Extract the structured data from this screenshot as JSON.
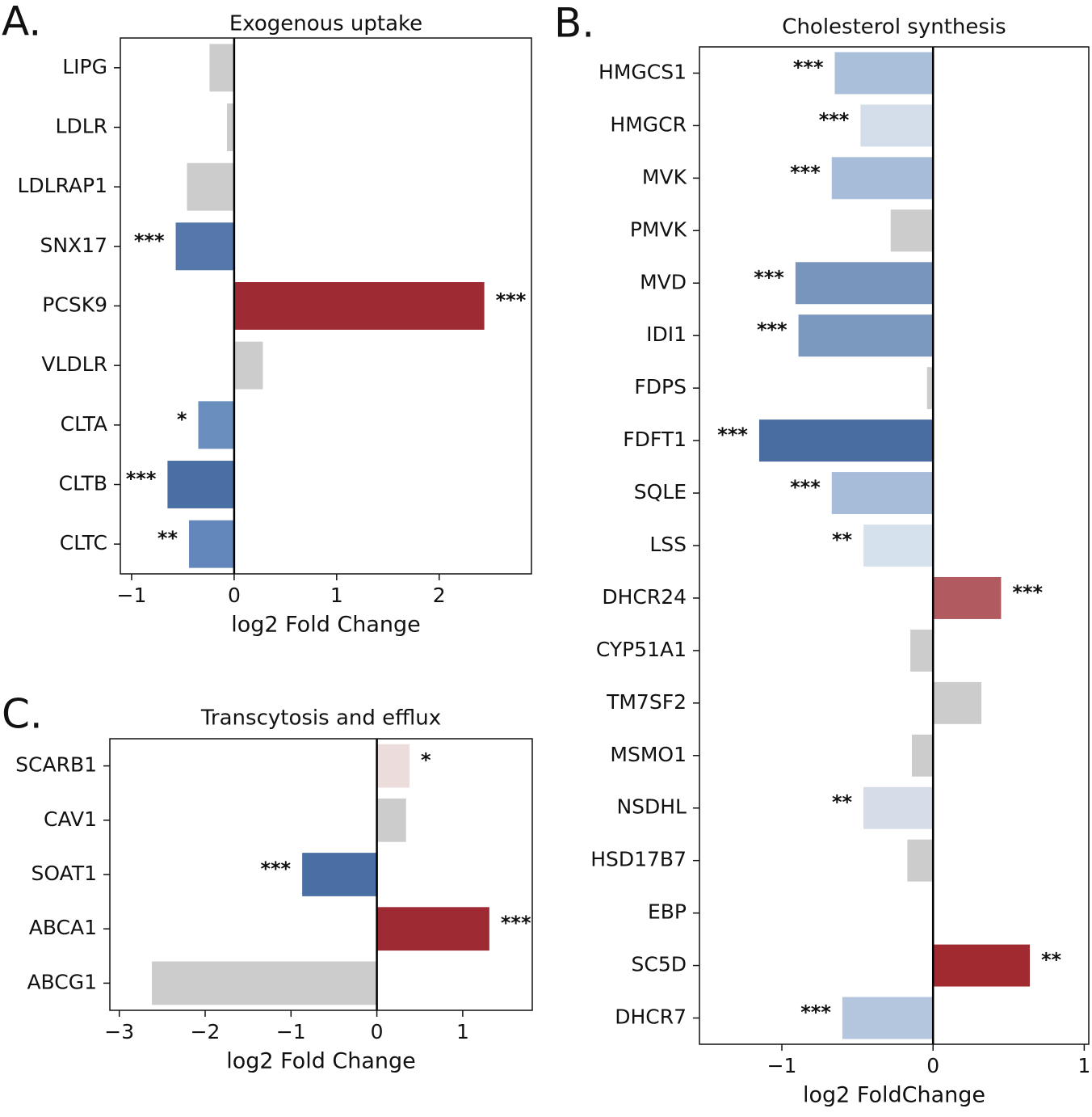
{
  "chart_data": [
    {
      "type": "barh",
      "panel_label": "A.",
      "title": "Exogenous uptake",
      "x_label": "log2 Fold Change",
      "categories": [
        "LIPG",
        "LDLR",
        "LDLRAP1",
        "SNX17",
        "PCSK9",
        "VLDLR",
        "CLTA",
        "CLTB",
        "CLTC"
      ],
      "values": [
        -0.24,
        -0.07,
        -0.46,
        -0.57,
        2.44,
        0.28,
        -0.35,
        -0.65,
        -0.44
      ],
      "colors": [
        "#cccccc",
        "#cccccc",
        "#cccccc",
        "#5577aa",
        "#9e2b33",
        "#cccccc",
        "#6a8fbf",
        "#4a6fa5",
        "#6387bb"
      ],
      "annotations": [
        null,
        null,
        null,
        "***",
        "***",
        null,
        "*",
        "***",
        "**"
      ],
      "xlim": [
        -1.11,
        2.9
      ],
      "xticks": [
        {
          "value": -1,
          "label": "−1"
        },
        0,
        1,
        2
      ]
    },
    {
      "type": "barh",
      "panel_label": "B.",
      "title": "Cholesterol synthesis",
      "x_label": "log2 FoldChange",
      "categories": [
        "HMGCS1",
        "HMGCR",
        "MVK",
        "PMVK",
        "MVD",
        "IDI1",
        "FDPS",
        "FDFT1",
        "SQLE",
        "LSS",
        "DHCR24",
        "CYP51A1",
        "TM7SF2",
        "MSMO1",
        "NSDHL",
        "HSD17B7",
        "EBP",
        "SC5D",
        "DHCR7"
      ],
      "values": [
        -0.65,
        -0.48,
        -0.67,
        -0.28,
        -0.91,
        -0.89,
        -0.04,
        -1.15,
        -0.67,
        -0.46,
        0.45,
        -0.15,
        0.32,
        -0.14,
        -0.46,
        -0.17,
        0.0,
        0.64,
        -0.6
      ],
      "colors": [
        "#aabfd9",
        "#d3deea",
        "#a6bcd8",
        "#cccccc",
        "#7896bd",
        "#7b99bf",
        "#cccccc",
        "#4a6d9f",
        "#a6bcd8",
        "#d6e1ee",
        "#b15b60",
        "#cccccc",
        "#cccccc",
        "#cccccc",
        "#d6dde9",
        "#cccccc",
        "#cccccc",
        "#a02a30",
        "#b3c6de"
      ],
      "annotations": [
        "***",
        "***",
        "***",
        null,
        "***",
        "***",
        null,
        "***",
        "***",
        "**",
        "***",
        null,
        null,
        null,
        "**",
        null,
        null,
        "**",
        "***"
      ],
      "xlim": [
        -1.545,
        1.03
      ],
      "xticks": [
        {
          "value": -1,
          "label": "−1"
        },
        0,
        1
      ]
    },
    {
      "type": "barh",
      "panel_label": "C.",
      "title": "Transcytosis and efflux",
      "x_label": "log2 Fold Change",
      "categories": [
        "SCARB1",
        "CAV1",
        "SOAT1",
        "ABCA1",
        "ABCG1"
      ],
      "values": [
        0.38,
        0.34,
        -0.87,
        1.31,
        -2.62
      ],
      "colors": [
        "#ecdcdc",
        "#cccccc",
        "#4a6fa5",
        "#9e2b33",
        "#cccccc"
      ],
      "annotations": [
        "*",
        null,
        "***",
        "***",
        null
      ],
      "xlim": [
        -3.11,
        1.81
      ],
      "xticks": [
        {
          "value": -3,
          "label": "−3"
        },
        {
          "value": -2,
          "label": "−2"
        },
        {
          "value": -1,
          "label": "−1"
        },
        0,
        1
      ]
    }
  ]
}
